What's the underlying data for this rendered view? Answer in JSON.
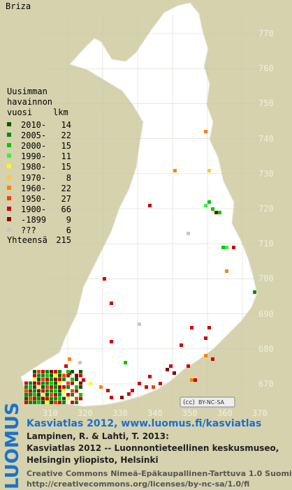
{
  "header": {
    "title": "Briza"
  },
  "legend": {
    "heading": [
      "Uusimman",
      "havainnon"
    ],
    "year_label": "vuosi",
    "count_label": "lkm",
    "rows": [
      {
        "label": "2010-",
        "count": "14",
        "color": "#005a00"
      },
      {
        "label": "2005-",
        "count": "22",
        "color": "#008c00"
      },
      {
        "label": "2000-",
        "count": "15",
        "color": "#00c800"
      },
      {
        "label": "1990-",
        "count": "11",
        "color": "#3cf03c"
      },
      {
        "label": "1980-",
        "count": "15",
        "color": "#ffff00"
      },
      {
        "label": "1970-",
        "count": "8",
        "color": "#ffc832"
      },
      {
        "label": "1960-",
        "count": "22",
        "color": "#ff8200"
      },
      {
        "label": "1950-",
        "count": "27",
        "color": "#ff3c00"
      },
      {
        "label": "1900-",
        "count": "66",
        "color": "#d20000"
      },
      {
        "label": "-1899",
        "count": "9",
        "color": "#8c0000"
      },
      {
        "label": "???",
        "count": "6",
        "color": "#c8c8c8"
      }
    ],
    "total_label": "Yhteensä",
    "total": "215"
  },
  "map": {
    "y_labels": [
      "770",
      "760",
      "750",
      "740",
      "730",
      "720",
      "710",
      "700",
      "690",
      "680",
      "670"
    ],
    "x_labels": [
      "310",
      "320",
      "330",
      "340",
      "350",
      "360",
      "370"
    ],
    "cc_badge": "BY-NC-SA"
  },
  "footer": {
    "logo": "LUOMUS",
    "link": "Kasviatlas 2012, www.luomus.fi/kasviatlas",
    "citation": [
      "Lampinen, R. & Lahti, T. 2013:",
      "Kasviatlas 2012 -- Luonnontieteellinen keskusmuseo,",
      "Helsingin yliopisto, Helsinki"
    ],
    "license": [
      "Creative Commons Nimeä-Epäkaupallinen-Tarttuva 1.0 Suomi",
      "http://creativecommons.org/licenses/by-nc-sa/1.0/fi"
    ]
  }
}
